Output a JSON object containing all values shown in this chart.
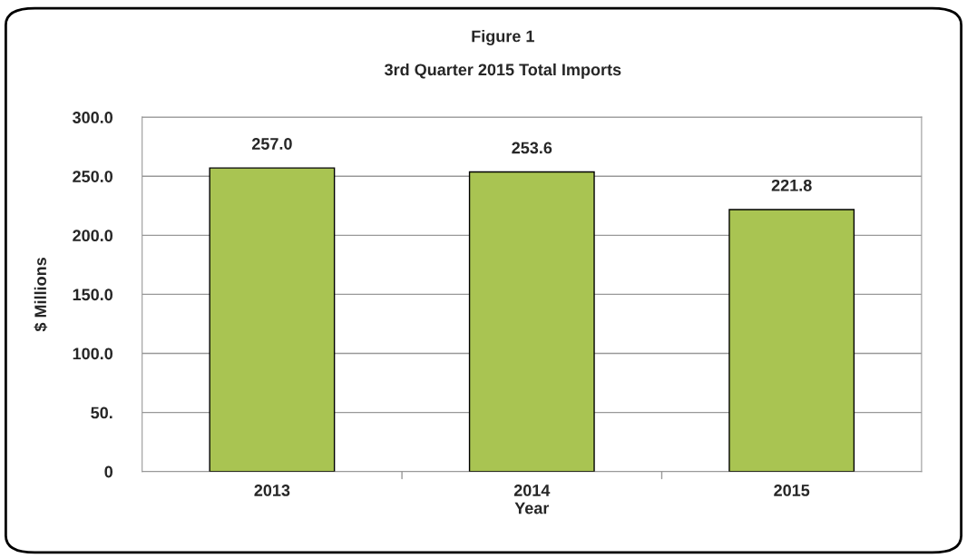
{
  "chart_data": {
    "type": "bar",
    "title": "Figure 1",
    "subtitle": "3rd Quarter 2015 Total Imports",
    "xlabel": "Year",
    "ylabel": "$ Millions",
    "categories": [
      "2013",
      "2014",
      "2015"
    ],
    "series": [
      {
        "color": "#a9c452",
        "values": [
          257.0,
          253.6,
          221.8
        ],
        "value_labels": [
          "257.0",
          "253.6",
          "221.8"
        ]
      }
    ],
    "ylim": [
      0,
      300
    ],
    "yticks": [
      {
        "value": 0,
        "label": "0"
      },
      {
        "value": 50,
        "label": "50."
      },
      {
        "value": 100,
        "label": "100.0"
      },
      {
        "value": 150,
        "label": "150.0"
      },
      {
        "value": 200,
        "label": "200.0"
      },
      {
        "value": 250,
        "label": "250.0"
      },
      {
        "value": 300,
        "label": "300.0"
      }
    ],
    "grid": "y",
    "legend": false
  }
}
